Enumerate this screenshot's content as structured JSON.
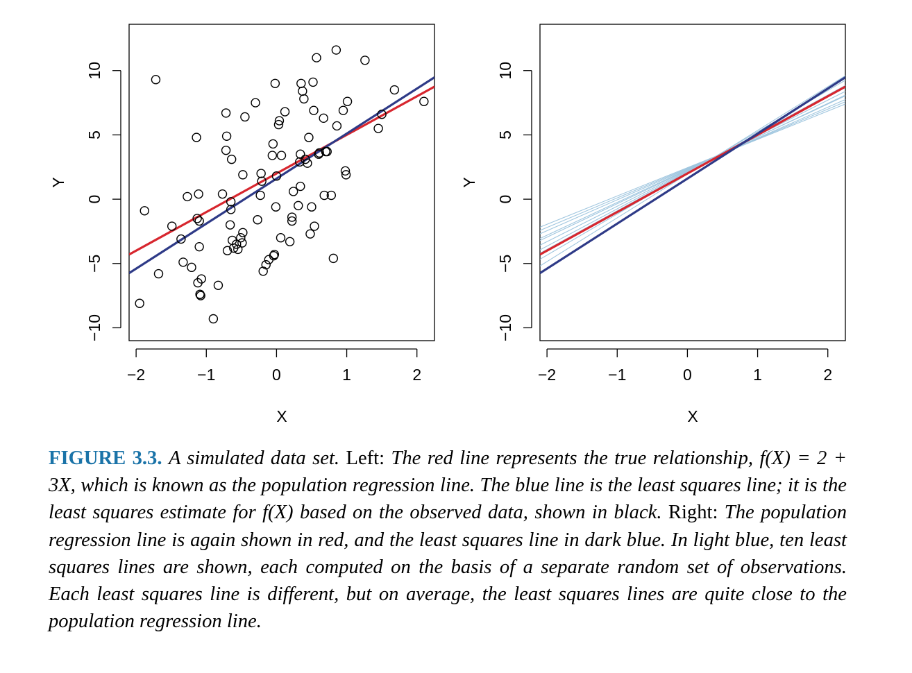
{
  "chart_data": [
    {
      "type": "scatter",
      "panel": "left",
      "title": "",
      "xlabel": "X",
      "ylabel": "Y",
      "xlim": [
        -2.1,
        2.25
      ],
      "ylim": [
        -11,
        13.6
      ],
      "xticks": [
        -2,
        -1,
        0,
        1,
        2
      ],
      "xtick_labels": [
        "−2",
        "−1",
        "0",
        "1",
        "2"
      ],
      "yticks": [
        -10,
        -5,
        0,
        5,
        10
      ],
      "ytick_labels": [
        "−10",
        "−5",
        "0",
        "5",
        "10"
      ],
      "colors": {
        "population": "#d7262e",
        "least_squares": "#2e3a87",
        "points": "#000000"
      },
      "lines": [
        {
          "name": "population regression line",
          "intercept": 2.0,
          "slope": 3.0,
          "color": "#d7262e"
        },
        {
          "name": "least squares line",
          "intercept": 1.6,
          "slope": 3.5,
          "color": "#2e3a87"
        }
      ],
      "points": {
        "x": [
          -1.95,
          -1.88,
          -1.72,
          -1.68,
          -1.49,
          -1.36,
          -1.33,
          -1.27,
          -1.21,
          -1.14,
          -1.13,
          -1.12,
          -1.11,
          -1.1,
          -1.1,
          -1.09,
          -1.09,
          -1.08,
          -1.07,
          -0.9,
          -0.83,
          -0.77,
          -0.72,
          -0.72,
          -0.71,
          -0.7,
          -0.66,
          -0.65,
          -0.65,
          -0.64,
          -0.63,
          -0.61,
          -0.57,
          -0.55,
          -0.51,
          -0.49,
          -0.48,
          -0.48,
          -0.45,
          -0.3,
          -0.27,
          -0.23,
          -0.22,
          -0.21,
          -0.19,
          -0.15,
          -0.11,
          -0.06,
          -0.05,
          -0.04,
          -0.03,
          -0.02,
          -0.01,
          0.0,
          0.03,
          0.04,
          0.06,
          0.07,
          0.12,
          0.19,
          0.22,
          0.22,
          0.24,
          0.31,
          0.33,
          0.34,
          0.34,
          0.35,
          0.37,
          0.39,
          0.41,
          0.44,
          0.46,
          0.48,
          0.5,
          0.52,
          0.53,
          0.54,
          0.57,
          0.6,
          0.61,
          0.67,
          0.68,
          0.7,
          0.72,
          0.78,
          0.81,
          0.85,
          0.86,
          0.95,
          0.98,
          0.99,
          1.01,
          1.26,
          1.45,
          1.5,
          1.68,
          2.1
        ],
        "y": [
          -8.1,
          -0.9,
          9.3,
          -5.8,
          -2.1,
          -3.1,
          -4.9,
          0.2,
          -5.3,
          4.8,
          -1.5,
          -6.5,
          0.4,
          -1.7,
          -3.7,
          -7.4,
          -7.4,
          -7.5,
          -6.2,
          -9.3,
          -6.7,
          0.4,
          6.7,
          3.8,
          4.9,
          -4.0,
          -2.0,
          -0.8,
          -0.2,
          3.1,
          -3.2,
          -3.8,
          -3.5,
          -3.9,
          -3.0,
          -3.4,
          -2.6,
          1.9,
          6.4,
          7.5,
          -1.6,
          0.3,
          2.0,
          1.4,
          -5.6,
          -5.1,
          -4.7,
          3.4,
          4.3,
          -4.4,
          -4.3,
          9.0,
          -0.6,
          1.8,
          5.8,
          6.1,
          -3.0,
          3.4,
          6.8,
          -3.3,
          -1.7,
          -1.4,
          0.6,
          -0.5,
          2.9,
          1.0,
          3.5,
          9.0,
          8.4,
          7.8,
          3.1,
          2.8,
          4.8,
          -2.7,
          -0.6,
          9.1,
          6.9,
          -2.1,
          11.0,
          3.5,
          3.6,
          6.3,
          0.3,
          3.7,
          3.7,
          0.3,
          -4.6,
          11.6,
          5.7,
          6.9,
          2.2,
          1.9,
          7.6,
          10.8,
          5.5,
          6.6,
          8.5,
          7.6
        ]
      }
    },
    {
      "type": "line",
      "panel": "right",
      "title": "",
      "xlabel": "X",
      "ylabel": "Y",
      "xlim": [
        -2.1,
        2.25
      ],
      "ylim": [
        -11,
        13.6
      ],
      "xticks": [
        -2,
        -1,
        0,
        1,
        2
      ],
      "xtick_labels": [
        "−2",
        "−1",
        "0",
        "1",
        "2"
      ],
      "yticks": [
        -10,
        -5,
        0,
        5,
        10
      ],
      "ytick_labels": [
        "−10",
        "−5",
        "0",
        "5",
        "10"
      ],
      "colors": {
        "population": "#d7262e",
        "least_squares": "#2e3a87",
        "samples": "#9fc6df"
      },
      "series": [
        {
          "name": "sample fit 1",
          "intercept": 2.35,
          "slope": 2.4,
          "color": "#9fc6df"
        },
        {
          "name": "sample fit 2",
          "intercept": 2.25,
          "slope": 2.6,
          "color": "#9fc6df"
        },
        {
          "name": "sample fit 3",
          "intercept": 2.15,
          "slope": 2.9,
          "color": "#9fc6df"
        },
        {
          "name": "sample fit 4",
          "intercept": 2.4,
          "slope": 2.3,
          "color": "#9fc6df"
        },
        {
          "name": "sample fit 5",
          "intercept": 2.05,
          "slope": 3.2,
          "color": "#9fc6df"
        },
        {
          "name": "sample fit 6",
          "intercept": 2.3,
          "slope": 2.55,
          "color": "#9fc6df"
        },
        {
          "name": "sample fit 7",
          "intercept": 2.1,
          "slope": 3.0,
          "color": "#9fc6df"
        },
        {
          "name": "sample fit 8",
          "intercept": 1.95,
          "slope": 3.4,
          "color": "#9fc6df"
        },
        {
          "name": "sample fit 9",
          "intercept": 2.45,
          "slope": 2.2,
          "color": "#9fc6df"
        },
        {
          "name": "sample fit 10",
          "intercept": 2.2,
          "slope": 2.75,
          "color": "#9fc6df"
        },
        {
          "name": "population regression line",
          "intercept": 2.0,
          "slope": 3.0,
          "color": "#d7262e"
        },
        {
          "name": "least squares line",
          "intercept": 1.6,
          "slope": 3.5,
          "color": "#2e3a87"
        }
      ]
    }
  ],
  "caption": {
    "label": "FIGURE 3.3.",
    "parts": [
      {
        "style": "it",
        "text": "A simulated data set."
      },
      {
        "style": "rm",
        "text": "Left:"
      },
      {
        "style": "it",
        "text": "The red line represents the true relationship, f(X) = 2 + 3X, which is known as the population regression line. The blue line is the least squares line; it is the least squares estimate for f(X) based on the observed data, shown in black."
      },
      {
        "style": "rm",
        "text": "Right:"
      },
      {
        "style": "it",
        "text": "The population regression line is again shown in red, and the least squares line in dark blue. In light blue, ten least squares lines are shown, each computed on the basis of a separate random set of observations. Each least squares line is different, but on average, the least squares lines are quite close to the population regression line."
      }
    ]
  }
}
